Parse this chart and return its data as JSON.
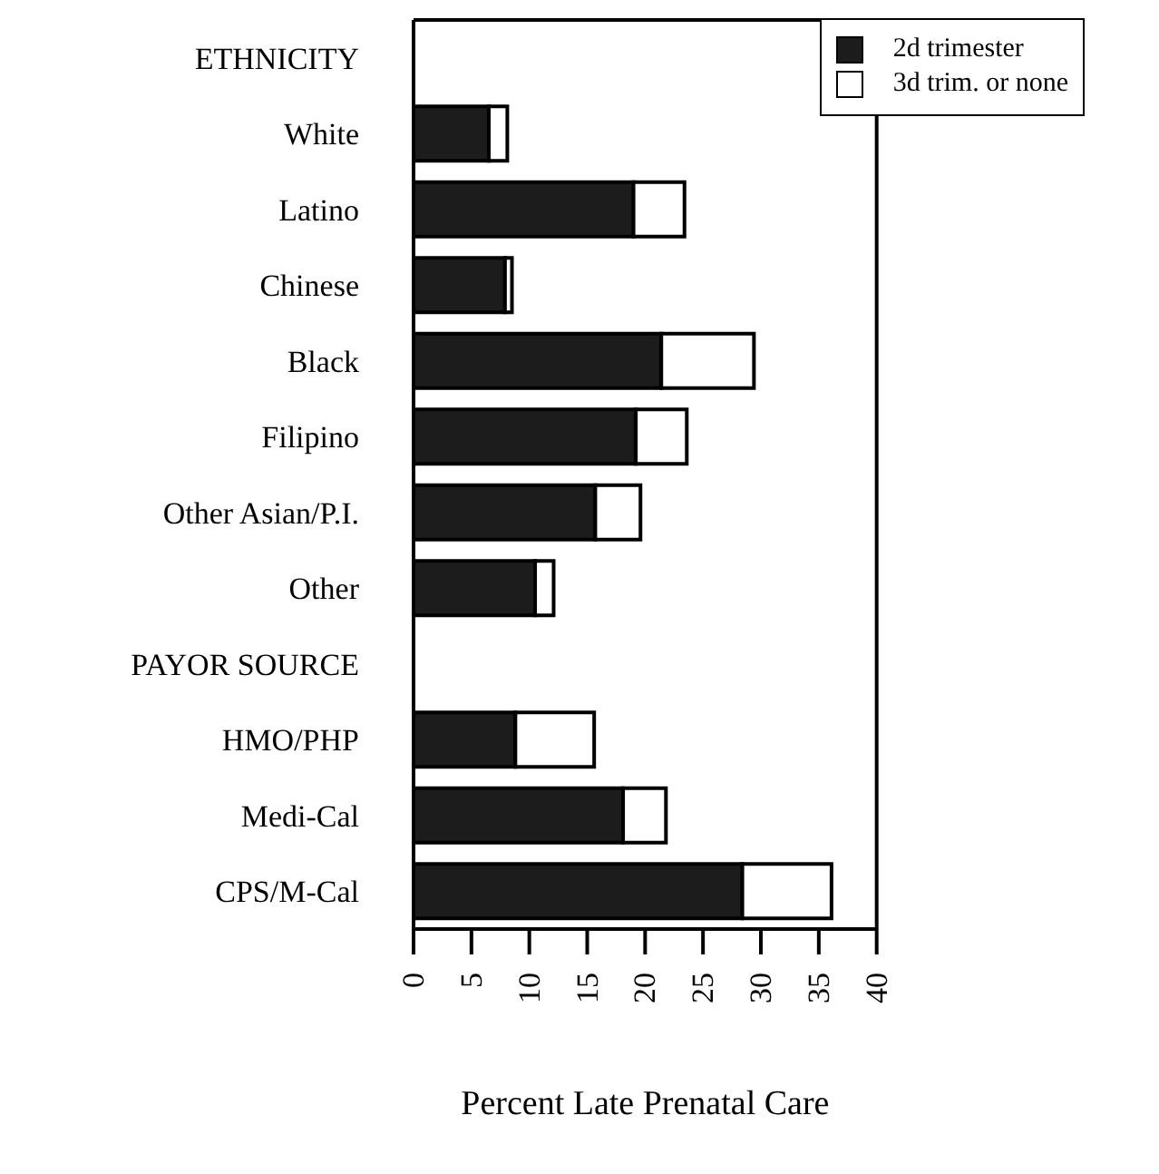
{
  "chart_data": {
    "type": "bar",
    "orientation": "horizontal",
    "stacked": true,
    "xlabel": "Percent Late Prenatal Care",
    "categories": [
      "ETHNICITY",
      "White",
      "Latino",
      "Chinese",
      "Black",
      "Filipino",
      "Other Asian/P.I.",
      "Other",
      "PAYOR SOURCE",
      "HMO/PHP",
      "Medi-Cal",
      "CPS/M-Cal"
    ],
    "series": [
      {
        "name": "2d trimester",
        "color": "#1c1c1c",
        "values": [
          null,
          6.5,
          19.0,
          7.9,
          21.4,
          19.2,
          15.7,
          10.5,
          null,
          8.8,
          18.1,
          28.4
        ]
      },
      {
        "name": "3d trim. or none",
        "color": "#ffffff",
        "values": [
          null,
          1.6,
          4.4,
          0.6,
          8.0,
          4.4,
          3.9,
          1.6,
          null,
          6.8,
          3.7,
          7.7
        ]
      }
    ],
    "xlim": [
      0,
      40
    ],
    "xticks": [
      0,
      5,
      10,
      15,
      20,
      25,
      30,
      35,
      40
    ],
    "grid": false,
    "legend": "top right"
  }
}
